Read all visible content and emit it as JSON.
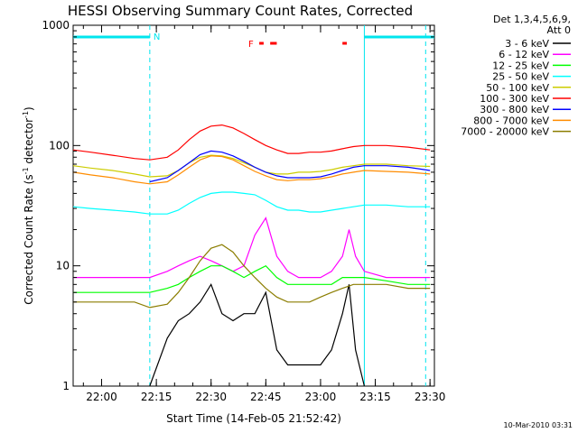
{
  "chart_data": {
    "type": "line",
    "title": "HESSI Observing Summary Count Rates, Corrected",
    "xlabel": "Start Time (14-Feb-05 21:52:42)",
    "ylabel": "Corrected Count Rate (s⁻¹ detector⁻¹)",
    "ylabel_parts": [
      "Corrected Count Rate (s",
      "-1",
      " detector",
      "-1",
      ")"
    ],
    "yscale": "log",
    "ylim": [
      1,
      1000
    ],
    "xlim_minutes": [
      21.87,
      23.52
    ],
    "xlim_hours": [
      21.87,
      23.52
    ],
    "x_ticks": [
      "22:00",
      "22:15",
      "22:30",
      "22:45",
      "23:00",
      "23:15",
      "23:30"
    ],
    "x_tick_hours": [
      22.0,
      22.25,
      22.5,
      22.75,
      23.0,
      23.25,
      23.5
    ],
    "y_ticks": [
      "1",
      "10",
      "100",
      "1000"
    ],
    "y_tick_values": [
      1,
      10,
      100,
      1000
    ],
    "legend_header": [
      "Det 1,3,4,5,6,9,",
      "Att 0"
    ],
    "legend_position": "right",
    "annotations": {
      "night_label": "N",
      "flare_label": "F",
      "night_intervals_hours": [
        [
          21.87,
          22.22
        ],
        [
          23.2,
          23.52
        ]
      ],
      "flare_intervals_hours": [
        [
          22.72,
          22.74
        ],
        [
          22.77,
          22.8
        ],
        [
          23.1,
          23.12
        ]
      ],
      "saa_hours": [
        22.22,
        23.2
      ],
      "night_color": "#00e5ee",
      "flare_color": "#ff0000"
    },
    "series": [
      {
        "name": "3 - 6 keV",
        "color": "#000000",
        "x": [
          22.22,
          22.3,
          22.35,
          22.4,
          22.45,
          22.5,
          22.55,
          22.6,
          22.65,
          22.7,
          22.75,
          22.8,
          22.85,
          22.9,
          22.95,
          23.0,
          23.05,
          23.1,
          23.13,
          23.16,
          23.2
        ],
        "y": [
          1,
          2.5,
          3.5,
          4,
          5,
          7,
          4,
          3.5,
          4,
          4,
          6,
          2,
          1.5,
          1.5,
          1.5,
          1.5,
          2,
          4,
          7,
          2,
          1
        ]
      },
      {
        "name": "6 - 12 keV",
        "color": "#ff00ff",
        "x": [
          21.87,
          21.95,
          22.05,
          22.15,
          22.22,
          22.3,
          22.35,
          22.4,
          22.45,
          22.5,
          22.55,
          22.6,
          22.65,
          22.7,
          22.75,
          22.8,
          22.85,
          22.9,
          22.95,
          23.0,
          23.05,
          23.1,
          23.13,
          23.16,
          23.2,
          23.3,
          23.4,
          23.5
        ],
        "y": [
          8,
          8,
          8,
          8,
          8,
          9,
          10,
          11,
          12,
          11,
          10,
          9,
          10,
          18,
          25,
          12,
          9,
          8,
          8,
          8,
          9,
          12,
          20,
          12,
          9,
          8,
          8,
          8
        ]
      },
      {
        "name": "12 - 25 keV",
        "color": "#00ff00",
        "x": [
          21.87,
          21.95,
          22.05,
          22.15,
          22.22,
          22.3,
          22.35,
          22.4,
          22.45,
          22.5,
          22.55,
          22.6,
          22.65,
          22.7,
          22.75,
          22.8,
          22.85,
          22.9,
          22.95,
          23.0,
          23.05,
          23.1,
          23.15,
          23.2,
          23.3,
          23.4,
          23.5
        ],
        "y": [
          6,
          6,
          6,
          6,
          6,
          6.5,
          7,
          8,
          9,
          10,
          10,
          9,
          8,
          9,
          10,
          8,
          7,
          7,
          7,
          7,
          7,
          8,
          8,
          8,
          7.5,
          7,
          7
        ]
      },
      {
        "name": "25 - 50 keV",
        "color": "#00ffff",
        "x": [
          21.87,
          21.95,
          22.05,
          22.15,
          22.22,
          22.3,
          22.35,
          22.4,
          22.45,
          22.5,
          22.55,
          22.6,
          22.65,
          22.7,
          22.75,
          22.8,
          22.85,
          22.9,
          22.95,
          23.0,
          23.05,
          23.1,
          23.15,
          23.2,
          23.3,
          23.4,
          23.5
        ],
        "y": [
          31,
          30,
          29,
          28,
          27,
          27,
          29,
          33,
          37,
          40,
          41,
          41,
          40,
          39,
          35,
          31,
          29,
          29,
          28,
          28,
          29,
          30,
          31,
          32,
          32,
          31,
          31
        ]
      },
      {
        "name": "50 - 100 keV",
        "color": "#cccc00",
        "x": [
          21.87,
          21.95,
          22.05,
          22.15,
          22.22,
          22.3,
          22.35,
          22.4,
          22.45,
          22.5,
          22.55,
          22.6,
          22.65,
          22.7,
          22.75,
          22.8,
          22.85,
          22.9,
          22.95,
          23.0,
          23.05,
          23.1,
          23.15,
          23.2,
          23.3,
          23.4,
          23.5
        ],
        "y": [
          68,
          65,
          62,
          58,
          55,
          56,
          62,
          72,
          80,
          83,
          82,
          78,
          72,
          66,
          60,
          58,
          58,
          60,
          60,
          61,
          63,
          66,
          68,
          70,
          70,
          68,
          67
        ]
      },
      {
        "name": "100 - 300 keV",
        "color": "#ff0000",
        "x": [
          21.87,
          21.95,
          22.05,
          22.15,
          22.22,
          22.3,
          22.35,
          22.4,
          22.45,
          22.5,
          22.55,
          22.6,
          22.65,
          22.7,
          22.75,
          22.8,
          22.85,
          22.9,
          22.95,
          23.0,
          23.05,
          23.1,
          23.15,
          23.2,
          23.3,
          23.4,
          23.5
        ],
        "y": [
          92,
          88,
          83,
          78,
          76,
          80,
          92,
          112,
          132,
          145,
          148,
          140,
          126,
          112,
          100,
          92,
          86,
          86,
          88,
          88,
          90,
          94,
          98,
          100,
          100,
          97,
          92
        ]
      },
      {
        "name": "300 - 800 keV",
        "color": "#0000ff",
        "x": [
          22.22,
          22.3,
          22.35,
          22.4,
          22.45,
          22.5,
          22.55,
          22.6,
          22.65,
          22.7,
          22.75,
          22.8,
          22.85,
          22.9,
          22.95,
          23.0,
          23.05,
          23.1,
          23.15,
          23.2,
          23.3,
          23.4,
          23.5
        ],
        "y": [
          50,
          54,
          62,
          72,
          84,
          90,
          88,
          82,
          74,
          66,
          60,
          56,
          54,
          54,
          54,
          55,
          58,
          62,
          66,
          68,
          68,
          66,
          62
        ]
      },
      {
        "name": "800 - 7000 keV",
        "color": "#ff8c00",
        "x": [
          21.87,
          21.95,
          22.05,
          22.15,
          22.22,
          22.3,
          22.35,
          22.4,
          22.45,
          22.5,
          22.55,
          22.6,
          22.65,
          22.7,
          22.75,
          22.8,
          22.85,
          22.9,
          22.95,
          23.0,
          23.05,
          23.1,
          23.15,
          23.2,
          23.3,
          23.4,
          23.5
        ],
        "y": [
          60,
          57,
          54,
          50,
          48,
          50,
          57,
          66,
          76,
          82,
          81,
          76,
          68,
          61,
          56,
          52,
          51,
          52,
          52,
          53,
          55,
          58,
          60,
          62,
          61,
          60,
          58
        ]
      },
      {
        "name": "7000 - 20000 keV",
        "color": "#8b7d00",
        "x": [
          21.87,
          21.95,
          22.05,
          22.15,
          22.22,
          22.3,
          22.35,
          22.4,
          22.45,
          22.5,
          22.55,
          22.6,
          22.65,
          22.7,
          22.75,
          22.8,
          22.85,
          22.9,
          22.95,
          23.0,
          23.05,
          23.1,
          23.15,
          23.2,
          23.3,
          23.4,
          23.5
        ],
        "y": [
          5,
          5,
          5,
          5,
          4.5,
          4.8,
          6,
          8,
          11,
          14,
          15,
          13,
          10,
          8,
          6.5,
          5.5,
          5,
          5,
          5,
          5.5,
          6,
          6.5,
          7,
          7,
          7,
          6.5,
          6.5
        ]
      }
    ]
  },
  "timestamp": "10-Mar-2010 03:31"
}
